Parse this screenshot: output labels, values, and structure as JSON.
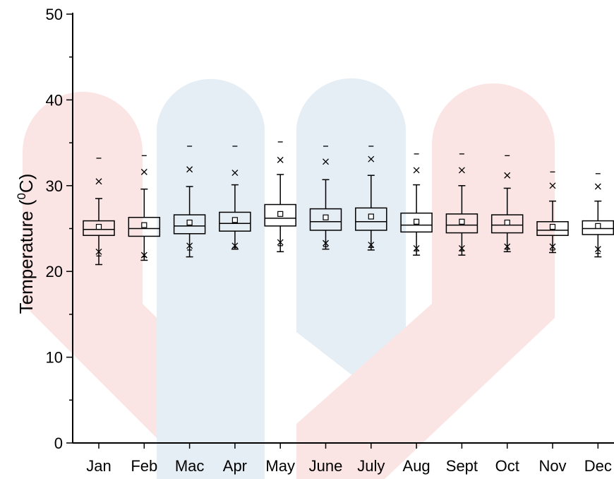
{
  "chart_data": {
    "type": "box",
    "ylabel_prefix": "Temperature (",
    "ylabel_sup": "0",
    "ylabel_suffix": "C)",
    "ylim": [
      0,
      50
    ],
    "yticks": [
      "0",
      "10",
      "20",
      "30",
      "40",
      "50"
    ],
    "grid": false,
    "legend": "none",
    "categories": [
      "Jan",
      "Feb",
      "Mac",
      "Apr",
      "May",
      "June",
      "July",
      "Aug",
      "Sept",
      "Oct",
      "Nov",
      "Dec"
    ],
    "boxes": [
      {
        "min": 20.8,
        "q1": 24.2,
        "median": 24.9,
        "q3": 25.9,
        "max": 28.5,
        "mean": 25.2,
        "p1": 22.3,
        "p99": 30.5,
        "extreme_low": 21.8,
        "extreme_high": 33.2
      },
      {
        "min": 21.3,
        "q1": 24.1,
        "median": 25.0,
        "q3": 26.3,
        "max": 29.6,
        "mean": 25.4,
        "p1": 21.9,
        "p99": 31.6,
        "extreme_low": 21.7,
        "extreme_high": 33.5
      },
      {
        "min": 21.7,
        "q1": 24.4,
        "median": 25.3,
        "q3": 26.6,
        "max": 29.9,
        "mean": 25.7,
        "p1": 23.0,
        "p99": 31.9,
        "extreme_low": 22.5,
        "extreme_high": 34.6
      },
      {
        "min": 22.6,
        "q1": 24.7,
        "median": 25.6,
        "q3": 26.9,
        "max": 30.1,
        "mean": 26.0,
        "p1": 23.0,
        "p99": 31.5,
        "extreme_low": 22.8,
        "extreme_high": 34.6
      },
      {
        "min": 22.3,
        "q1": 25.3,
        "median": 26.2,
        "q3": 27.8,
        "max": 31.3,
        "mean": 26.7,
        "p1": 23.4,
        "p99": 33.0,
        "extreme_low": 23.0,
        "extreme_high": 35.1
      },
      {
        "min": 22.6,
        "q1": 24.8,
        "median": 25.8,
        "q3": 27.3,
        "max": 30.7,
        "mean": 26.3,
        "p1": 23.3,
        "p99": 32.8,
        "extreme_low": 22.9,
        "extreme_high": 34.6
      },
      {
        "min": 22.5,
        "q1": 24.8,
        "median": 25.8,
        "q3": 27.4,
        "max": 31.2,
        "mean": 26.4,
        "p1": 23.1,
        "p99": 33.1,
        "extreme_low": 22.8,
        "extreme_high": 34.6
      },
      {
        "min": 21.9,
        "q1": 24.6,
        "median": 25.4,
        "q3": 26.8,
        "max": 30.1,
        "mean": 25.8,
        "p1": 22.7,
        "p99": 31.8,
        "extreme_low": 22.4,
        "extreme_high": 33.7
      },
      {
        "min": 21.9,
        "q1": 24.5,
        "median": 25.4,
        "q3": 26.7,
        "max": 30.0,
        "mean": 25.8,
        "p1": 22.7,
        "p99": 31.8,
        "extreme_low": 22.4,
        "extreme_high": 33.7
      },
      {
        "min": 22.3,
        "q1": 24.5,
        "median": 25.4,
        "q3": 26.6,
        "max": 29.7,
        "mean": 25.7,
        "p1": 22.9,
        "p99": 31.2,
        "extreme_low": 22.6,
        "extreme_high": 33.5
      },
      {
        "min": 22.2,
        "q1": 24.2,
        "median": 24.8,
        "q3": 25.8,
        "max": 28.2,
        "mean": 25.2,
        "p1": 22.9,
        "p99": 30.0,
        "extreme_low": 22.5,
        "extreme_high": 31.6
      },
      {
        "min": 21.7,
        "q1": 24.3,
        "median": 25.0,
        "q3": 25.9,
        "max": 28.2,
        "mean": 25.3,
        "p1": 22.6,
        "p99": 29.9,
        "extreme_low": 22.1,
        "extreme_high": 31.4
      }
    ],
    "colors": {
      "axis": "#000000",
      "box": "#000000",
      "watermark_red": "#fbe4e4",
      "watermark_blue": "#e6eef5"
    }
  }
}
